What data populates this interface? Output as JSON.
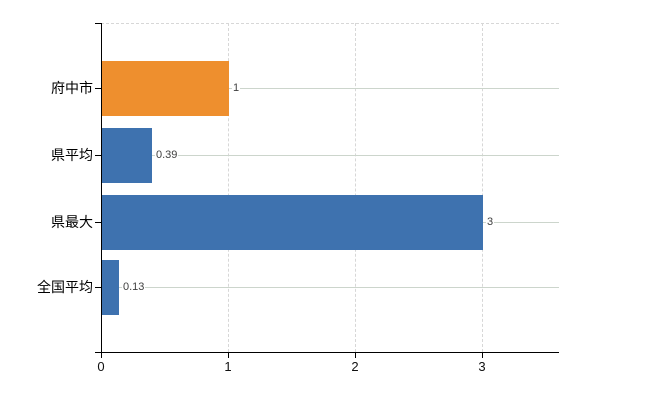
{
  "chart_data": {
    "type": "bar",
    "orientation": "horizontal",
    "title": "",
    "legend": "none",
    "categories": [
      "府中市",
      "県平均",
      "県最大",
      "全国平均"
    ],
    "values": [
      1,
      0.39,
      3,
      0.13
    ],
    "value_labels": [
      "1",
      "0.39",
      "3",
      "0.13"
    ],
    "bar_colors": [
      "#ee8f2e",
      "#3e72af",
      "#3e72af",
      "#3e72af"
    ],
    "xlabel": "",
    "ylabel": "",
    "xlim": [
      0,
      3.6
    ],
    "x_tick_values": [
      0,
      1,
      2,
      3
    ],
    "x_tick_labels": [
      "0",
      "1",
      "2",
      "3"
    ],
    "grid": {
      "vertical": "dashed",
      "horizontal": "solid",
      "top_border": "dashed"
    }
  },
  "colors": {
    "bar_orange": "#ee8f2e",
    "bar_blue": "#3e72af",
    "axis": "#000000",
    "gridline_horizontal": "#ccd5cc",
    "gridline_vertical": "#d7d7d7",
    "value_label_text": "#404040",
    "category_label_text": "#000000",
    "background": "#ffffff"
  }
}
